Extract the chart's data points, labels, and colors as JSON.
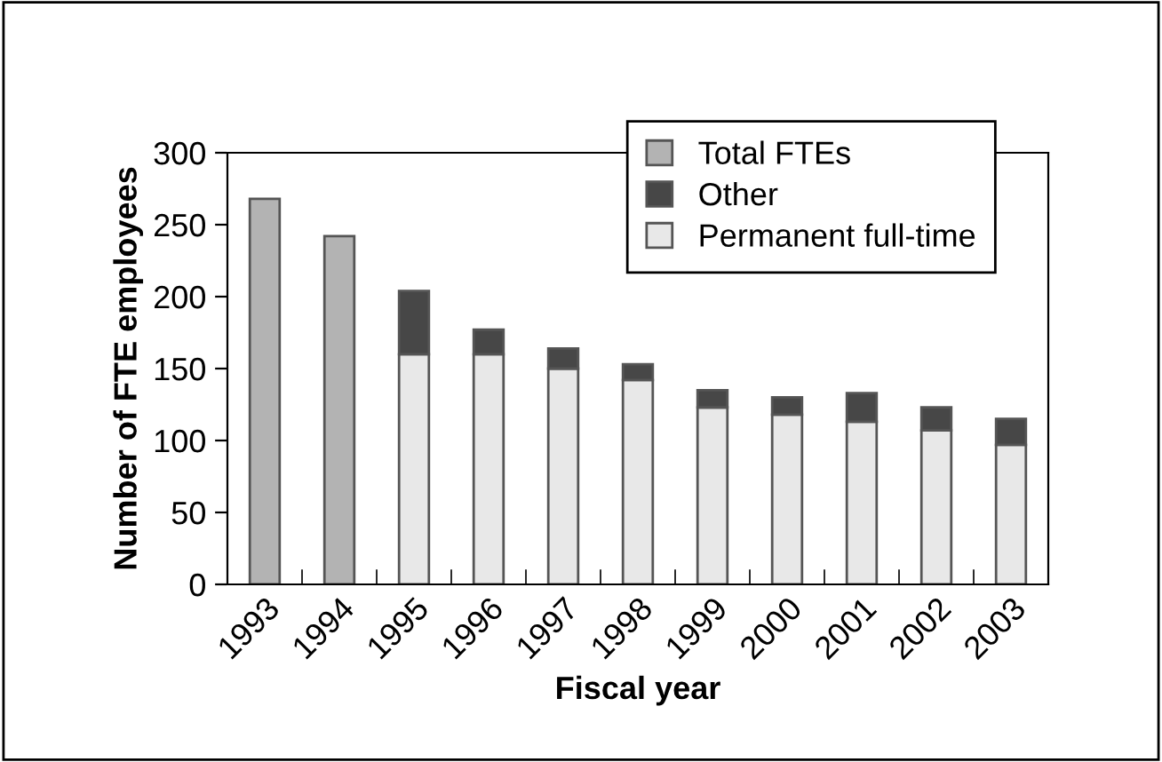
{
  "chart_data": {
    "type": "bar",
    "stacked": true,
    "xlabel": "Fiscal year",
    "ylabel": "Number of FTE employees",
    "categories": [
      "1993",
      "1994",
      "1995",
      "1996",
      "1997",
      "1998",
      "1999",
      "2000",
      "2001",
      "2002",
      "2003"
    ],
    "series": [
      {
        "name": "Permanent full-time",
        "color": "#e8e8e8",
        "values": [
          null,
          null,
          160,
          160,
          150,
          142,
          123,
          118,
          113,
          107,
          97
        ]
      },
      {
        "name": "Other",
        "color": "#474747",
        "values": [
          null,
          null,
          44,
          17,
          14,
          11,
          12,
          12,
          20,
          16,
          18
        ]
      },
      {
        "name": "Total FTEs",
        "color": "#b3b3b3",
        "values": [
          268,
          242,
          null,
          null,
          null,
          null,
          null,
          null,
          null,
          null,
          null
        ]
      }
    ],
    "ylim": [
      0,
      300
    ],
    "yticks": [
      0,
      50,
      100,
      150,
      200,
      250,
      300
    ],
    "grid": false,
    "legend": "top right"
  }
}
